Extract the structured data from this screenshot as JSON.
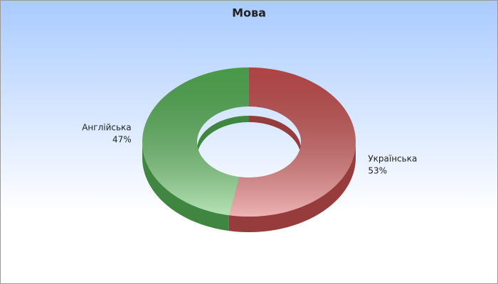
{
  "chart_data": {
    "type": "pie",
    "donut": true,
    "title": "Мова",
    "categories": [
      "Українська",
      "Англійська"
    ],
    "values": [
      53,
      47
    ],
    "value_labels": [
      "53%",
      "47%"
    ],
    "colors": [
      "#d95656",
      "#5cc05c"
    ]
  }
}
